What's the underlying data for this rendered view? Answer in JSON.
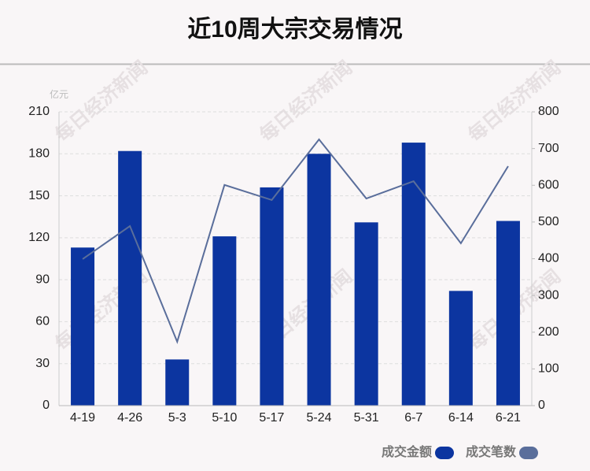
{
  "chart_data": {
    "type": "bar_line",
    "title": "近10周大宗交易情况",
    "y_unit": "亿元",
    "watermark": "每日经济新闻",
    "categories": [
      "4-19",
      "4-26",
      "5-3",
      "5-10",
      "5-17",
      "5-24",
      "5-31",
      "6-7",
      "6-14",
      "6-21"
    ],
    "series": [
      {
        "name": "成交金额",
        "type": "bar",
        "color": "#0c35a0",
        "values": [
          113,
          182,
          33,
          121,
          156,
          180,
          131,
          188,
          82,
          132
        ]
      },
      {
        "name": "成交笔数",
        "type": "line",
        "axis": "y2",
        "color": "#5a6e9b",
        "values": [
          399,
          489,
          174,
          601,
          560,
          725,
          564,
          611,
          442,
          652
        ]
      }
    ],
    "ylim": [
      0,
      210
    ],
    "yticks": [
      0,
      30,
      60,
      90,
      120,
      150,
      180,
      210
    ],
    "y2lim": [
      0,
      800
    ],
    "y2ticks": [
      0,
      100,
      200,
      300,
      400,
      500,
      600,
      700,
      800
    ],
    "grid": true,
    "legend": "bottom-right"
  }
}
